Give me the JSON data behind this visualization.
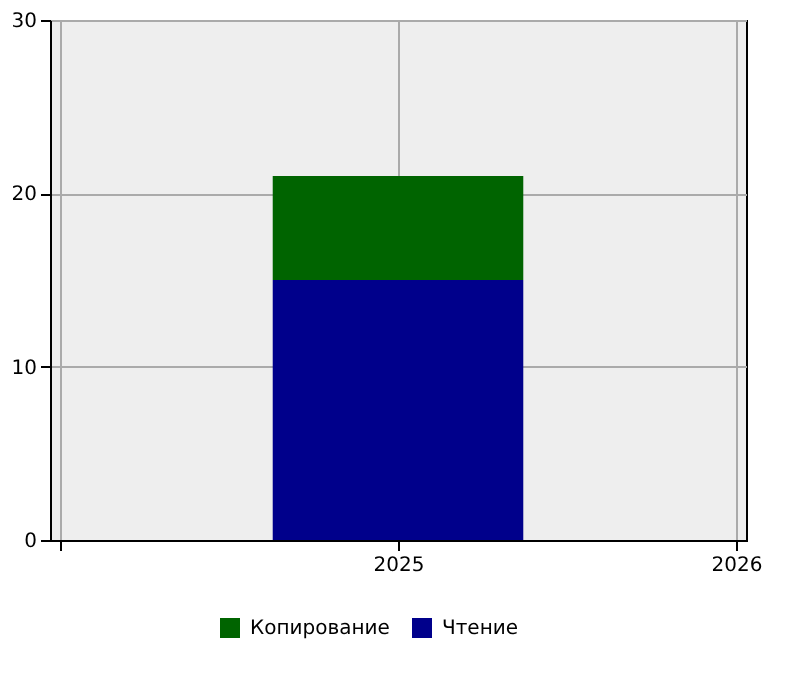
{
  "chart_data": {
    "type": "bar",
    "stacked": true,
    "x": [
      2025
    ],
    "series": [
      {
        "name": "Чтение",
        "color": "#00008b",
        "values": [
          15
        ]
      },
      {
        "name": "Копирование",
        "color": "#006400",
        "values": [
          6
        ]
      }
    ],
    "xlim": [
      2024,
      2026
    ],
    "xticks": [
      {
        "value": 2024,
        "label": null
      },
      2025,
      2026
    ],
    "ylim": [
      0,
      30
    ],
    "yticks": [
      0,
      10,
      20,
      30
    ],
    "grid": true,
    "legend": "bottom"
  }
}
